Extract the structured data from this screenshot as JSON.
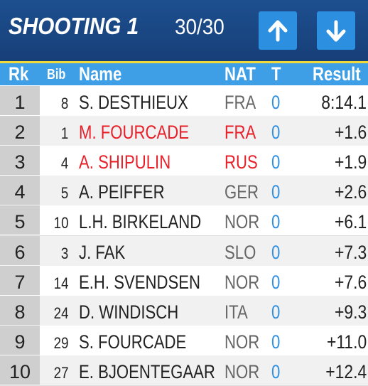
{
  "header": {
    "title": "SHOOTING 1",
    "progress": "30/30"
  },
  "table": {
    "columns": [
      "Rk",
      "Bib",
      "Name",
      "NAT",
      "T",
      "Result"
    ],
    "rows": [
      {
        "rk": "1",
        "bib": "8",
        "name": "S. DESTHIEUX",
        "nat": "FRA",
        "t": "0",
        "result": "8:14.1"
      },
      {
        "rk": "2",
        "bib": "1",
        "name": "M. FOURCADE",
        "nat": "FRA",
        "t": "0",
        "result": "+1.6",
        "highlight": true
      },
      {
        "rk": "3",
        "bib": "4",
        "name": "A. SHIPULIN",
        "nat": "RUS",
        "t": "0",
        "result": "+1.9",
        "highlight": true
      },
      {
        "rk": "4",
        "bib": "5",
        "name": "A. PEIFFER",
        "nat": "GER",
        "t": "0",
        "result": "+2.6"
      },
      {
        "rk": "5",
        "bib": "10",
        "name": "L.H. BIRKELAND",
        "nat": "NOR",
        "t": "0",
        "result": "+6.1"
      },
      {
        "rk": "6",
        "bib": "3",
        "name": "J. FAK",
        "nat": "SLO",
        "t": "0",
        "result": "+7.3"
      },
      {
        "rk": "7",
        "bib": "14",
        "name": "E.H. SVENDSEN",
        "nat": "NOR",
        "t": "0",
        "result": "+7.6"
      },
      {
        "rk": "8",
        "bib": "24",
        "name": "D. WINDISCH",
        "nat": "ITA",
        "t": "0",
        "result": "+9.3"
      },
      {
        "rk": "9",
        "bib": "29",
        "name": "S. FOURCADE",
        "nat": "NOR",
        "t": "0",
        "result": "+11.0"
      },
      {
        "rk": "10",
        "bib": "27",
        "name": "E. BJOENTEGAAR",
        "nat": "NOR",
        "t": "0",
        "result": "+12.4"
      }
    ]
  }
}
